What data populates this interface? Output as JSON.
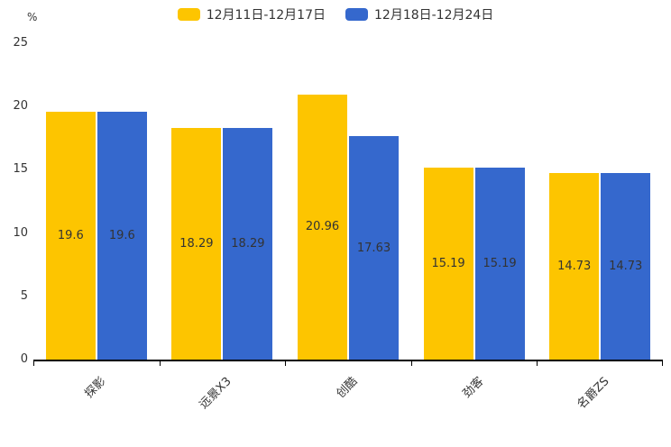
{
  "legend": {
    "items": [
      {
        "label": "12月11日-12月17日",
        "color": "#FDC500"
      },
      {
        "label": "12月18日-12月24日",
        "color": "#3568CD"
      }
    ]
  },
  "chart_data": {
    "type": "bar",
    "title": "",
    "unit_label": "%",
    "categories": [
      "探影",
      "远景X3",
      "创酷",
      "劲客",
      "名爵ZS"
    ],
    "series": [
      {
        "name": "12月11日-12月17日",
        "color": "#FDC500",
        "values": [
          19.6,
          18.29,
          20.96,
          15.19,
          14.73
        ]
      },
      {
        "name": "12月18日-12月24日",
        "color": "#3568CD",
        "values": [
          19.6,
          18.29,
          17.63,
          15.19,
          14.73
        ]
      }
    ],
    "value_labels": [
      "19.6",
      "18.29",
      "20.96",
      "15.19",
      "14.73",
      "19.6",
      "18.29",
      "17.63",
      "15.19",
      "14.73"
    ],
    "xlabel": "",
    "ylabel": "%",
    "ylim": [
      0,
      25
    ],
    "yticks": [
      0,
      5,
      10,
      15,
      20,
      25
    ],
    "grid": false,
    "legend_position": "top"
  },
  "colors": {
    "bar_yellow": "#FDC500",
    "bar_blue": "#3568CD",
    "text": "#333333",
    "axis": "#000000"
  }
}
